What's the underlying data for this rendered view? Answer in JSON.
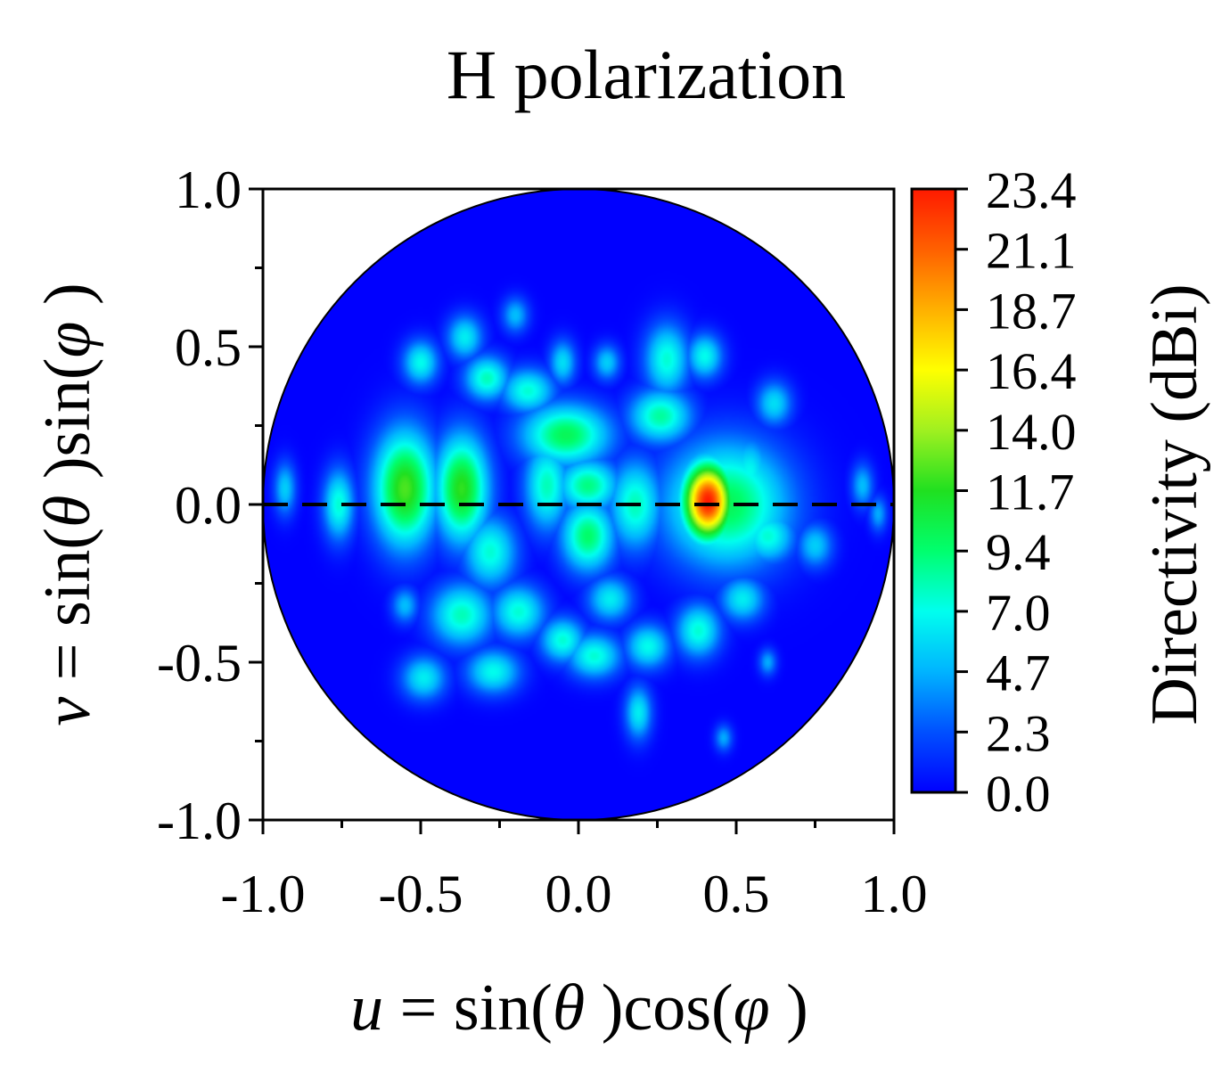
{
  "chart_data": {
    "type": "heatmap",
    "title": "H polarization",
    "xlabel": {
      "var": "u",
      "eq": " = sin(",
      "theta": "θ",
      "mid": " )cos(",
      "phi": "φ",
      "end": " )"
    },
    "ylabel": {
      "var": "v",
      "eq": " = sin(",
      "theta": "θ",
      "mid": " )sin(",
      "phi": "φ",
      "end": " )"
    },
    "xlim": [
      -1.0,
      1.0
    ],
    "ylim": [
      -1.0,
      1.0
    ],
    "x_ticks": [
      "-1.0",
      "-0.5",
      "0.0",
      "0.5",
      "1.0"
    ],
    "y_ticks": [
      "1.0",
      "0.5",
      "0.0",
      "-0.5",
      "-1.0"
    ],
    "x_tick_values": [
      -1.0,
      -0.5,
      0.0,
      0.5,
      1.0
    ],
    "y_tick_values": [
      1.0,
      0.5,
      0.0,
      -0.5,
      -1.0
    ],
    "dashed_line": {
      "v": 0.0,
      "from_u": -1.0,
      "to_u": 1.0
    },
    "colorbar": {
      "label": "Directivity (dBi)",
      "min": 0.0,
      "max": 23.4,
      "ticks": [
        "23.4",
        "21.1",
        "18.7",
        "16.4",
        "14.0",
        "11.7",
        "9.4",
        "7.0",
        "4.7",
        "2.3",
        "0.0"
      ],
      "colors": [
        "#0000ff",
        "#0050ff",
        "#00b4ff",
        "#00ffee",
        "#00ff6e",
        "#20e020",
        "#a0f020",
        "#ffff00",
        "#ffb000",
        "#ff6000",
        "#ff1a00"
      ]
    },
    "background_value": 0.0,
    "hotspots": [
      {
        "u": 0.41,
        "v": 0.01,
        "value": 23.4,
        "su": 0.055,
        "sv": 0.085
      },
      {
        "u": 0.47,
        "v": 0.0,
        "value": 10.0,
        "su": 0.14,
        "sv": 0.14
      },
      {
        "u": -0.55,
        "v": 0.05,
        "value": 12.5,
        "su": 0.07,
        "sv": 0.13
      },
      {
        "u": -0.37,
        "v": 0.05,
        "value": 12.0,
        "su": 0.06,
        "sv": 0.12
      },
      {
        "u": -0.76,
        "v": 0.0,
        "value": 7.5,
        "su": 0.035,
        "sv": 0.08
      },
      {
        "u": -0.93,
        "v": 0.05,
        "value": 5.5,
        "su": 0.025,
        "sv": 0.06
      },
      {
        "u": -0.04,
        "v": 0.22,
        "value": 10.0,
        "su": 0.1,
        "sv": 0.07
      },
      {
        "u": 0.03,
        "v": 0.06,
        "value": 9.0,
        "su": 0.07,
        "sv": 0.06
      },
      {
        "u": -0.1,
        "v": 0.06,
        "value": 8.0,
        "su": 0.05,
        "sv": 0.1
      },
      {
        "u": 0.03,
        "v": -0.1,
        "value": 9.5,
        "su": 0.06,
        "sv": 0.08
      },
      {
        "u": 0.18,
        "v": 0.0,
        "value": 8.0,
        "su": 0.06,
        "sv": 0.1
      },
      {
        "u": 0.26,
        "v": 0.28,
        "value": 8.5,
        "su": 0.07,
        "sv": 0.06
      },
      {
        "u": 0.28,
        "v": 0.46,
        "value": 7.5,
        "su": 0.05,
        "sv": 0.08
      },
      {
        "u": 0.4,
        "v": 0.47,
        "value": 7.0,
        "su": 0.04,
        "sv": 0.05
      },
      {
        "u": 0.54,
        "v": 0.1,
        "value": 7.0,
        "su": 0.05,
        "sv": 0.08
      },
      {
        "u": 0.6,
        "v": -0.1,
        "value": 7.5,
        "su": 0.06,
        "sv": 0.06
      },
      {
        "u": 0.62,
        "v": 0.32,
        "value": 6.0,
        "su": 0.04,
        "sv": 0.05
      },
      {
        "u": 0.75,
        "v": -0.13,
        "value": 5.5,
        "su": 0.04,
        "sv": 0.05
      },
      {
        "u": 0.9,
        "v": 0.06,
        "value": 5.0,
        "su": 0.025,
        "sv": 0.05
      },
      {
        "u": 0.95,
        "v": -0.03,
        "value": 4.5,
        "su": 0.02,
        "sv": 0.04
      },
      {
        "u": -0.5,
        "v": 0.45,
        "value": 7.0,
        "su": 0.04,
        "sv": 0.05
      },
      {
        "u": -0.36,
        "v": 0.53,
        "value": 6.5,
        "su": 0.04,
        "sv": 0.05
      },
      {
        "u": -0.29,
        "v": 0.4,
        "value": 8.0,
        "su": 0.05,
        "sv": 0.05
      },
      {
        "u": -0.16,
        "v": 0.36,
        "value": 7.5,
        "su": 0.06,
        "sv": 0.05
      },
      {
        "u": -0.2,
        "v": 0.6,
        "value": 5.0,
        "su": 0.03,
        "sv": 0.04
      },
      {
        "u": -0.05,
        "v": 0.45,
        "value": 6.0,
        "su": 0.03,
        "sv": 0.05
      },
      {
        "u": 0.09,
        "v": 0.45,
        "value": 5.5,
        "su": 0.03,
        "sv": 0.04
      },
      {
        "u": -0.28,
        "v": -0.15,
        "value": 7.5,
        "su": 0.06,
        "sv": 0.08
      },
      {
        "u": -0.37,
        "v": -0.35,
        "value": 8.0,
        "su": 0.07,
        "sv": 0.07
      },
      {
        "u": -0.19,
        "v": -0.34,
        "value": 7.5,
        "su": 0.06,
        "sv": 0.06
      },
      {
        "u": -0.49,
        "v": -0.55,
        "value": 6.5,
        "su": 0.05,
        "sv": 0.05
      },
      {
        "u": -0.27,
        "v": -0.53,
        "value": 7.0,
        "su": 0.06,
        "sv": 0.05
      },
      {
        "u": -0.05,
        "v": -0.43,
        "value": 7.5,
        "su": 0.05,
        "sv": 0.05
      },
      {
        "u": 0.1,
        "v": -0.3,
        "value": 6.5,
        "su": 0.05,
        "sv": 0.05
      },
      {
        "u": 0.05,
        "v": -0.48,
        "value": 7.5,
        "su": 0.06,
        "sv": 0.05
      },
      {
        "u": 0.22,
        "v": -0.45,
        "value": 7.0,
        "su": 0.05,
        "sv": 0.05
      },
      {
        "u": 0.19,
        "v": -0.66,
        "value": 6.5,
        "su": 0.03,
        "sv": 0.06
      },
      {
        "u": 0.38,
        "v": -0.4,
        "value": 7.5,
        "su": 0.05,
        "sv": 0.06
      },
      {
        "u": 0.52,
        "v": -0.3,
        "value": 6.5,
        "su": 0.05,
        "sv": 0.05
      },
      {
        "u": -0.55,
        "v": -0.32,
        "value": 5.0,
        "su": 0.03,
        "sv": 0.04
      },
      {
        "u": 0.6,
        "v": -0.5,
        "value": 4.5,
        "su": 0.02,
        "sv": 0.03
      },
      {
        "u": 0.46,
        "v": -0.74,
        "value": 4.5,
        "su": 0.02,
        "sv": 0.03
      }
    ]
  }
}
